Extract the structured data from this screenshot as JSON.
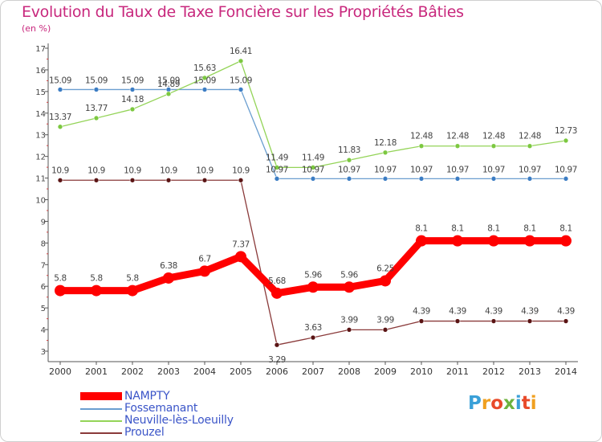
{
  "header": {
    "title": "Evolution du Taux de Taxe Foncière sur les Propriétés Bâties",
    "subtitle": "(en %)"
  },
  "logo": {
    "text": "Proxiti",
    "letters": [
      "P",
      "r",
      "o",
      "x",
      "i",
      "t",
      "i"
    ],
    "letter_colors": [
      "#3aa0d8",
      "#f0a020",
      "#e84a2a",
      "#6db33f",
      "#3aa0d8",
      "#e84a2a",
      "#f0a020"
    ]
  },
  "chart_data": {
    "type": "line",
    "title": "Evolution du Taux de Taxe Foncière sur les Propriétés Bâties",
    "ylabel": "(en %)",
    "xlabel": "",
    "ylim": [
      3,
      17
    ],
    "y_ticks": [
      3,
      4,
      5,
      6,
      7,
      8,
      9,
      10,
      11,
      12,
      13,
      14,
      15,
      16,
      17
    ],
    "grid": false,
    "legend_position": "bottom-left",
    "categories": [
      "2000",
      "2001",
      "2002",
      "2003",
      "2004",
      "2005",
      "2006",
      "2007",
      "2008",
      "2009",
      "2010",
      "2011",
      "2012",
      "2013",
      "2014"
    ],
    "series": [
      {
        "name": "Fossemanant",
        "color": "#6a9ed0",
        "marker": "#3c7dc4",
        "values": [
          15.09,
          15.09,
          15.09,
          15.09,
          15.09,
          15.09,
          10.97,
          10.97,
          10.97,
          10.97,
          10.97,
          10.97,
          10.97,
          10.97,
          10.97
        ],
        "labels": [
          "15.09",
          "15.09",
          "15.09",
          "15.09",
          "15.09",
          "15.09",
          "10.97",
          "10.97",
          "10.97",
          "10.97",
          "10.97",
          "10.97",
          "10.97",
          "10.97",
          "10.97"
        ]
      },
      {
        "name": "Neuville-lès-Loeuilly",
        "color": "#94d458",
        "marker": "#7cc840",
        "values": [
          13.37,
          13.77,
          14.18,
          14.89,
          15.63,
          16.41,
          11.49,
          11.49,
          11.83,
          12.18,
          12.48,
          12.48,
          12.48,
          12.48,
          12.73
        ],
        "labels": [
          "13.37",
          "13.77",
          "14.18",
          "14.89",
          "15.63",
          "16.41",
          "11.49",
          "11.49",
          "11.83",
          "12.18",
          "12.48",
          "12.48",
          "12.48",
          "12.48",
          "12.73"
        ]
      },
      {
        "name": "Prouzel",
        "color": "#8a3a3a",
        "marker": "#5a1414",
        "values": [
          10.9,
          10.9,
          10.9,
          10.9,
          10.9,
          10.9,
          3.29,
          3.63,
          3.99,
          3.99,
          4.39,
          4.39,
          4.39,
          4.39,
          4.39
        ],
        "labels": [
          "10.9",
          "10.9",
          "10.9",
          "10.9",
          "10.9",
          "10.9",
          "3.29",
          "3.63",
          "3.99",
          "3.99",
          "4.39",
          "4.39",
          "4.39",
          "4.39",
          "4.39"
        ]
      },
      {
        "name": "NAMPTY",
        "color": "#ff0000",
        "marker": "#ff0000",
        "values": [
          5.8,
          5.8,
          5.8,
          6.38,
          6.7,
          7.37,
          5.68,
          5.96,
          5.96,
          6.25,
          8.1,
          8.1,
          8.1,
          8.1,
          8.1
        ],
        "labels": [
          "5.8",
          "5.8",
          "5.8",
          "6.38",
          "6.7",
          "7.37",
          "5.68",
          "5.96",
          "5.96",
          "6.25",
          "8.1",
          "8.1",
          "8.1",
          "8.1",
          "8.1"
        ]
      }
    ]
  }
}
